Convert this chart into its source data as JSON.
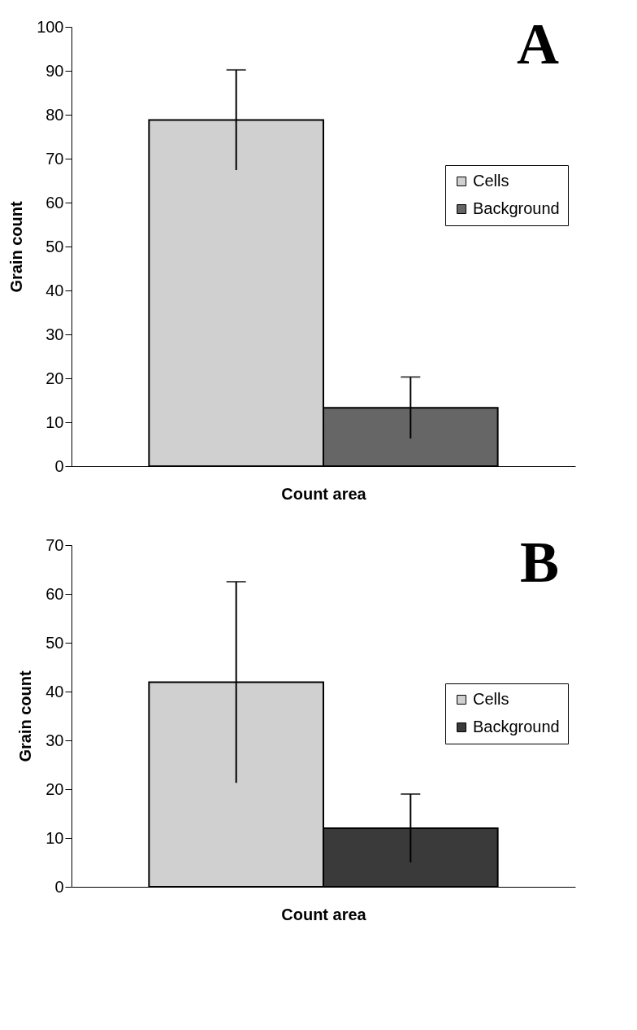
{
  "chart_data": [
    {
      "type": "bar",
      "title": "A",
      "xlabel": "Count area",
      "ylabel": "Grain count",
      "categories": [
        null
      ],
      "ylim": [
        0,
        100
      ],
      "yticks": [
        0,
        10,
        20,
        30,
        40,
        50,
        60,
        70,
        80,
        90,
        100
      ],
      "legend": "right",
      "series": [
        {
          "name": "Cells",
          "color": "#d0d0d0",
          "values": [
            78.8
          ],
          "errors": [
            11.4
          ]
        },
        {
          "name": "Background",
          "color": "#666666",
          "values": [
            13.3
          ],
          "errors": [
            7
          ]
        }
      ]
    },
    {
      "type": "bar",
      "title": "B",
      "xlabel": "Count area",
      "ylabel": "Grain count",
      "categories": [
        null
      ],
      "ylim": [
        0,
        70
      ],
      "yticks": [
        0,
        10,
        20,
        30,
        40,
        50,
        60,
        70
      ],
      "legend": "right",
      "series": [
        {
          "name": "Cells",
          "color": "#d0d0d0",
          "values": [
            41.9
          ],
          "errors": [
            20.6
          ]
        },
        {
          "name": "Background",
          "color": "#3a3a3a",
          "values": [
            12
          ],
          "errors": [
            7
          ]
        }
      ]
    }
  ]
}
